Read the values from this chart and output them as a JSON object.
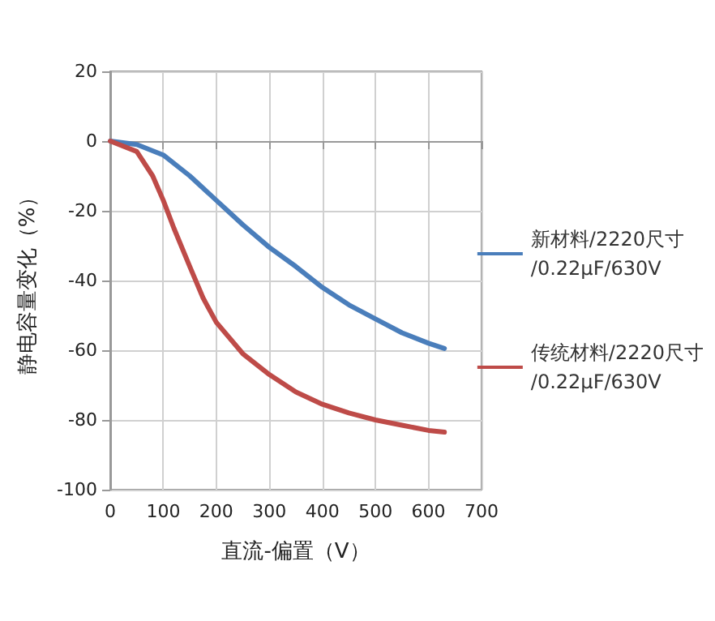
{
  "chart_data": {
    "type": "line",
    "xlabel": "直流-偏置（V）",
    "ylabel": "静电容量变化（%）",
    "xlim": [
      0,
      700
    ],
    "xticks": [
      0,
      100,
      200,
      300,
      400,
      500,
      600,
      700
    ],
    "ylim": [
      -100,
      20
    ],
    "yticks": [
      -100,
      -80,
      -60,
      -40,
      -20,
      0,
      20
    ],
    "grid": true,
    "legend": "right",
    "marker": "none",
    "line_style": "solid",
    "series": [
      {
        "name": "新材料/2220尺寸\n/0.22µF/630V",
        "color": "#4a7ebb",
        "x": [
          0,
          50,
          100,
          150,
          200,
          250,
          300,
          350,
          400,
          450,
          500,
          550,
          600,
          630
        ],
        "values": [
          0,
          -1,
          -4,
          -10,
          -17,
          -24,
          -30.5,
          -36,
          -42,
          -47,
          -51,
          -55,
          -58,
          -59.5
        ]
      },
      {
        "name": "传统材料/2220尺寸\n/0.22µF/630V",
        "color": "#be4b48",
        "x": [
          0,
          50,
          80,
          100,
          120,
          150,
          175,
          200,
          250,
          300,
          350,
          400,
          450,
          500,
          550,
          600,
          630
        ],
        "values": [
          0,
          -3,
          -10,
          -17,
          -25,
          -36,
          -45,
          -52,
          -61,
          -67,
          -72,
          -75.5,
          -78,
          -80,
          -81.5,
          -83,
          -83.5
        ]
      }
    ]
  }
}
